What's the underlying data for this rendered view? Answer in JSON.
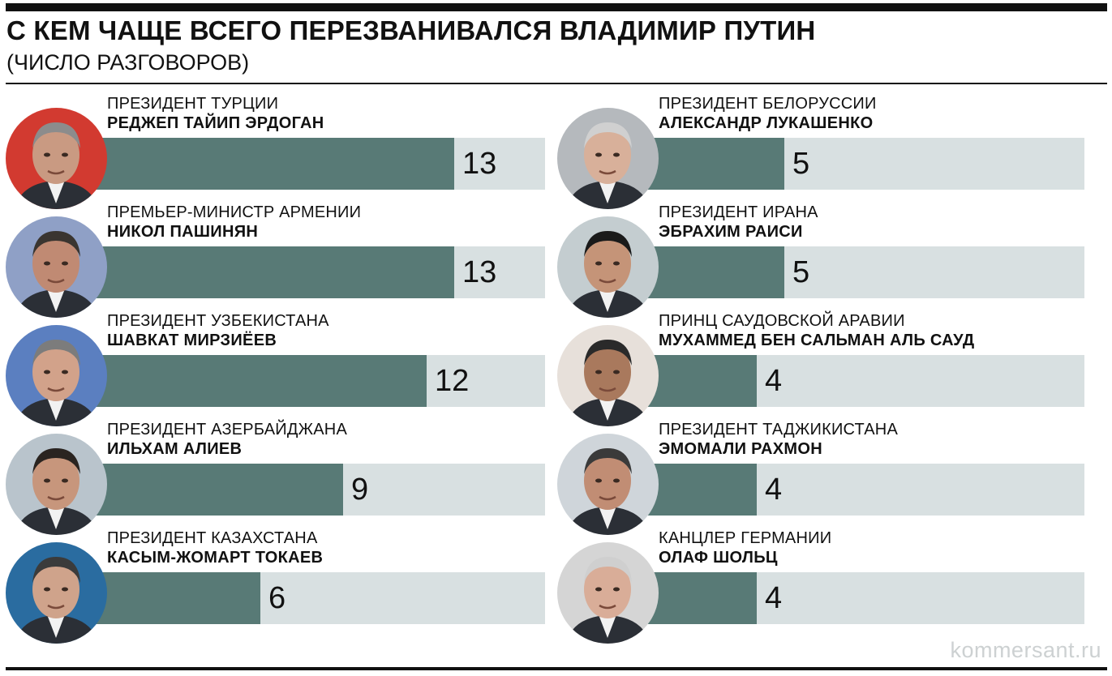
{
  "header": {
    "title": "С КЕМ ЧАЩЕ ВСЕГО ПЕРЕЗВАНИВАЛСЯ ВЛАДИМИР ПУТИН",
    "subtitle": "(ЧИСЛО РАЗГОВОРОВ)"
  },
  "footer": {
    "watermark": "kommersant.ru"
  },
  "colors": {
    "fill": "#587a76",
    "track": "#d8e0e1",
    "rule": "#111111"
  },
  "chart_data": {
    "type": "bar",
    "orientation": "horizontal",
    "title": "С КЕМ ЧАЩЕ ВСЕГО ПЕРЕЗВАНИВАЛСЯ ВЛАДИМИР ПУТИН",
    "subtitle": "(ЧИСЛО РАЗГОВОРОВ)",
    "max_value": 13,
    "layout": "two-columns",
    "entries": [
      {
        "role": "ПРЕЗИДЕНТ ТУРЦИИ",
        "name": "РЕДЖЕП ТАЙИП ЭРДОГАН",
        "value": 13,
        "value_label": "13",
        "column": "left",
        "portrait": "portrait-erdogan"
      },
      {
        "role": "ПРЕМЬЕР-МИНИСТР АРМЕНИИ",
        "name": "НИКОЛ ПАШИНЯН",
        "value": 13,
        "value_label": "13",
        "column": "left",
        "portrait": "portrait-pashinyan"
      },
      {
        "role": "ПРЕЗИДЕНТ УЗБЕКИСТАНА",
        "name": "ШАВКАТ МИРЗИЁЕВ",
        "value": 12,
        "value_label": "12",
        "column": "left",
        "portrait": "portrait-mirziyoyev"
      },
      {
        "role": "ПРЕЗИДЕНТ АЗЕРБАЙДЖАНА",
        "name": "ИЛЬХАМ АЛИЕВ",
        "value": 9,
        "value_label": "9",
        "column": "left",
        "portrait": "portrait-aliyev"
      },
      {
        "role": "ПРЕЗИДЕНТ КАЗАХСТАНА",
        "name": "КАСЫМ-ЖОМАРТ ТОКАЕВ",
        "value": 6,
        "value_label": "6",
        "column": "left",
        "portrait": "portrait-tokayev"
      },
      {
        "role": "ПРЕЗИДЕНТ БЕЛОРУССИИ",
        "name": "АЛЕКСАНДР ЛУКАШЕНКО",
        "value": 5,
        "value_label": "5",
        "column": "right",
        "portrait": "portrait-lukashenko"
      },
      {
        "role": "ПРЕЗИДЕНТ ИРАНА",
        "name": "ЭБРАХИМ РАИСИ",
        "value": 5,
        "value_label": "5",
        "column": "right",
        "portrait": "portrait-raisi"
      },
      {
        "role": "ПРИНЦ САУДОВСКОЙ АРАВИИ",
        "name": "МУХАММЕД БЕН САЛЬМАН АЛЬ САУД",
        "value": 4,
        "value_label": "4",
        "column": "right",
        "portrait": "portrait-bin-salman"
      },
      {
        "role": "ПРЕЗИДЕНТ ТАДЖИКИСТАНА",
        "name": "ЭМОМАЛИ РАХМОН",
        "value": 4,
        "value_label": "4",
        "column": "right",
        "portrait": "portrait-rahmon"
      },
      {
        "role": "КАНЦЛЕР ГЕРМАНИИ",
        "name": "ОЛАФ ШОЛЬЦ",
        "value": 4,
        "value_label": "4",
        "column": "right",
        "portrait": "portrait-scholz"
      }
    ]
  }
}
